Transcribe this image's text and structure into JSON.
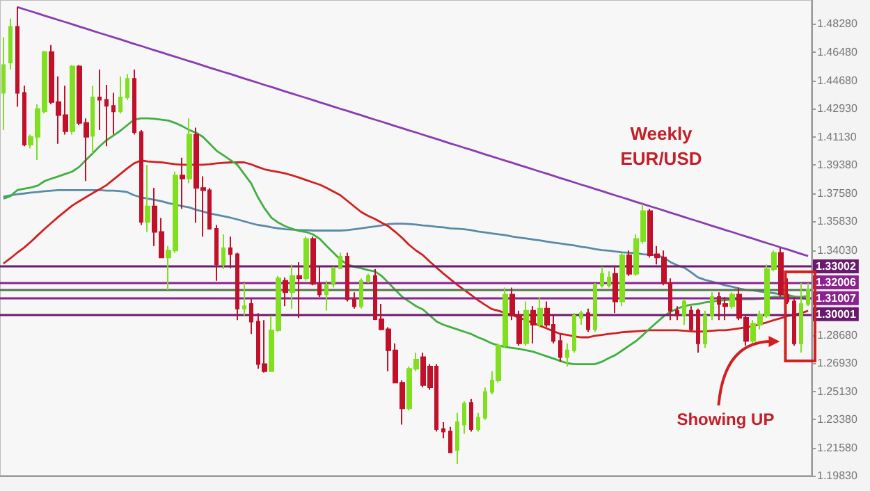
{
  "chart_data": {
    "type": "candlestick",
    "title": "Weekly\nEUR/USD",
    "annotations": [
      "Showing UP"
    ],
    "categories": [
      null,
      null,
      null,
      null,
      null,
      null,
      null,
      null,
      null,
      null,
      null,
      null,
      null,
      null,
      null,
      null,
      null,
      null,
      null,
      null,
      null,
      null,
      null,
      null,
      null,
      null,
      null,
      null,
      null,
      null,
      null,
      null,
      null,
      null,
      null,
      null,
      null,
      null,
      null,
      null,
      null,
      null,
      null,
      null,
      null,
      null,
      null,
      null,
      null,
      null,
      null,
      null,
      null,
      null,
      null,
      null,
      null,
      null,
      null,
      null,
      null,
      null,
      null,
      null,
      null,
      null,
      null,
      null,
      null,
      null,
      null,
      null,
      null,
      null,
      null,
      null,
      null,
      null,
      null,
      null,
      null,
      null,
      null,
      null,
      null,
      null,
      null,
      null,
      null,
      null,
      null,
      null,
      null,
      null,
      null,
      null,
      null,
      null,
      null,
      null,
      null,
      null,
      null,
      null,
      null,
      null,
      null,
      null,
      null,
      null,
      null,
      null,
      null,
      null,
      null,
      null,
      null,
      null
    ],
    "ohlc": [
      [
        1.4393,
        1.4743,
        1.4159,
        1.4568
      ],
      [
        1.4583,
        1.486,
        1.4539,
        1.4808
      ],
      [
        1.4808,
        1.4933,
        1.4305,
        1.4393
      ],
      [
        1.4393,
        1.4437,
        1.4057,
        1.4066
      ],
      [
        1.4066,
        1.413,
        1.4043,
        1.4116
      ],
      [
        1.4116,
        1.432,
        1.397,
        1.4291
      ],
      [
        1.4276,
        1.4656,
        1.4262,
        1.465
      ],
      [
        1.465,
        1.4694,
        1.432,
        1.4335
      ],
      [
        1.4335,
        1.4495,
        1.4072,
        1.4253
      ],
      [
        1.4253,
        1.4437,
        1.413,
        1.4151
      ],
      [
        1.4151,
        1.4568,
        1.413,
        1.4559
      ],
      [
        1.4559,
        1.4568,
        1.4189,
        1.4203
      ],
      [
        1.4203,
        1.4232,
        1.3838,
        1.4116
      ],
      [
        1.4121,
        1.4437,
        1.4013,
        1.4364
      ],
      [
        1.4364,
        1.4539,
        1.4159,
        1.4349
      ],
      [
        1.4349,
        1.4443,
        1.4057,
        1.4311
      ],
      [
        1.4311,
        1.4393,
        1.413,
        1.4276
      ],
      [
        1.4276,
        1.4495,
        1.4262,
        1.4364
      ],
      [
        1.4364,
        1.451,
        1.4349,
        1.4481
      ],
      [
        1.4481,
        1.4539,
        1.413,
        1.4145
      ],
      [
        1.4145,
        1.4159,
        1.3561,
        1.3581
      ],
      [
        1.3581,
        1.394,
        1.3517,
        1.3678
      ],
      [
        1.3678,
        1.3794,
        1.3429,
        1.3517
      ],
      [
        1.3517,
        1.3605,
        1.3356,
        1.3356
      ],
      [
        1.3356,
        1.3429,
        1.3152,
        1.34
      ],
      [
        1.34,
        1.3897,
        1.3386,
        1.3873
      ],
      [
        1.3873,
        1.3984,
        1.3663,
        1.3853
      ],
      [
        1.3853,
        1.4232,
        1.3824,
        1.413
      ],
      [
        1.413,
        1.4174,
        1.3575,
        1.3794
      ],
      [
        1.3794,
        1.3867,
        1.3488,
        1.378
      ],
      [
        1.378,
        1.3794,
        1.3532,
        1.3537
      ],
      [
        1.3537,
        1.3561,
        1.321,
        1.3313
      ],
      [
        1.3313,
        1.3502,
        1.3283,
        1.3415
      ],
      [
        1.3415,
        1.3488,
        1.3289,
        1.3377
      ],
      [
        1.3377,
        1.3386,
        1.2962,
        1.3035
      ],
      [
        1.3035,
        1.3196,
        1.2991,
        1.305
      ],
      [
        1.3064,
        1.3094,
        1.2875,
        1.2953
      ],
      [
        1.2953,
        1.3006,
        1.2656,
        1.2685
      ],
      [
        1.2685,
        1.2962,
        1.2632,
        1.2641
      ],
      [
        1.2641,
        1.2991,
        1.2641,
        1.2898
      ],
      [
        1.2898,
        1.324,
        1.2889,
        1.3225
      ],
      [
        1.321,
        1.3231,
        1.305,
        1.3137
      ],
      [
        1.3137,
        1.3313,
        1.3035,
        1.324
      ],
      [
        1.324,
        1.3327,
        1.2977,
        1.3225
      ],
      [
        1.3225,
        1.3488,
        1.321,
        1.3473
      ],
      [
        1.3473,
        1.3488,
        1.3181,
        1.319
      ],
      [
        1.319,
        1.3298,
        1.3108,
        1.3123
      ],
      [
        1.3123,
        1.321,
        1.3021,
        1.3187
      ],
      [
        1.3187,
        1.3298,
        1.3167,
        1.3289
      ],
      [
        1.3289,
        1.3386,
        1.3283,
        1.3362
      ],
      [
        1.3362,
        1.3386,
        1.3079,
        1.3094
      ],
      [
        1.3094,
        1.3137,
        1.3035,
        1.305
      ],
      [
        1.305,
        1.3225,
        1.3035,
        1.321
      ],
      [
        1.321,
        1.3254,
        1.3196,
        1.324
      ],
      [
        1.324,
        1.3283,
        1.2962,
        1.2968
      ],
      [
        1.2968,
        1.3064,
        1.2898,
        1.2904
      ],
      [
        1.2904,
        1.2918,
        1.2641,
        1.2772
      ],
      [
        1.2772,
        1.2816,
        1.2568,
        1.2568
      ],
      [
        1.2568,
        1.2583,
        1.2305,
        1.2407
      ],
      [
        1.2407,
        1.267,
        1.2393,
        1.2656
      ],
      [
        1.2656,
        1.2758,
        1.2641,
        1.2714
      ],
      [
        1.2729,
        1.2758,
        1.2539,
        1.2553
      ],
      [
        1.267,
        1.2685,
        1.2524,
        1.2539
      ],
      [
        1.267,
        1.2685,
        1.2261,
        1.2276
      ],
      [
        1.2276,
        1.232,
        1.2218,
        1.2261
      ],
      [
        1.2261,
        1.229,
        1.213,
        1.213
      ],
      [
        1.2145,
        1.2378,
        1.2057,
        1.232
      ],
      [
        1.2305,
        1.2451,
        1.2247,
        1.2437
      ],
      [
        1.2442,
        1.2466,
        1.2261,
        1.2276
      ],
      [
        1.2276,
        1.2378,
        1.2261,
        1.2349
      ],
      [
        1.2349,
        1.2539,
        1.2334,
        1.251
      ],
      [
        1.251,
        1.2641,
        1.2495,
        1.2583
      ],
      [
        1.2583,
        1.2816,
        1.2568,
        1.2802
      ],
      [
        1.2802,
        1.3167,
        1.2787,
        1.3123
      ],
      [
        1.3123,
        1.3167,
        1.2962,
        1.2991
      ],
      [
        1.2991,
        1.3021,
        1.2802,
        1.2816
      ],
      [
        1.2816,
        1.3079,
        1.2802,
        1.3021
      ],
      [
        1.3021,
        1.305,
        1.2816,
        1.2933
      ],
      [
        1.2933,
        1.3108,
        1.2918,
        1.3035
      ],
      [
        1.3035,
        1.3079,
        1.2918,
        1.2933
      ],
      [
        1.2933,
        1.2991,
        1.2816,
        1.2831
      ],
      [
        1.2831,
        1.2875,
        1.27,
        1.2729
      ],
      [
        1.2729,
        1.2816,
        1.267,
        1.2772
      ],
      [
        1.2772,
        1.3006,
        1.2758,
        1.2991
      ],
      [
        1.2977,
        1.3021,
        1.2933,
        1.3006
      ],
      [
        1.3006,
        1.3035,
        1.2889,
        1.2904
      ],
      [
        1.2904,
        1.3196,
        1.2889,
        1.3181
      ],
      [
        1.3181,
        1.3298,
        1.3167,
        1.3254
      ],
      [
        1.3181,
        1.3269,
        1.3167,
        1.3231
      ],
      [
        1.3254,
        1.3298,
        1.3006,
        1.3079
      ],
      [
        1.3079,
        1.3386,
        1.305,
        1.3371
      ],
      [
        1.3371,
        1.34,
        1.324,
        1.3254
      ],
      [
        1.3254,
        1.3502,
        1.324,
        1.3473
      ],
      [
        1.3459,
        1.3692,
        1.3444,
        1.3648
      ],
      [
        1.3648,
        1.3663,
        1.3356,
        1.3371
      ],
      [
        1.3377,
        1.3429,
        1.3313,
        1.3356
      ],
      [
        1.3356,
        1.34,
        1.3181,
        1.3196
      ],
      [
        1.3196,
        1.3225,
        1.2962,
        1.3021
      ],
      [
        1.3021,
        1.305,
        1.2962,
        1.2991
      ],
      [
        1.2991,
        1.3094,
        1.2933,
        1.3079
      ],
      [
        1.3021,
        1.305,
        1.2889,
        1.2904
      ],
      [
        1.3021,
        1.3035,
        1.2758,
        1.2816
      ],
      [
        1.2816,
        1.3021,
        1.2787,
        1.2991
      ],
      [
        1.2991,
        1.3137,
        1.2962,
        1.3108
      ],
      [
        1.3108,
        1.3137,
        1.2962,
        1.3064
      ],
      [
        1.3064,
        1.3108,
        1.2962,
        1.305
      ],
      [
        1.305,
        1.3137,
        1.3035,
        1.3123
      ],
      [
        1.3123,
        1.3167,
        1.2962,
        1.2977
      ],
      [
        1.2977,
        1.2991,
        1.2802,
        1.2831
      ],
      [
        1.2831,
        1.2962,
        1.2816,
        1.2939
      ],
      [
        1.2933,
        1.3021,
        1.2904,
        1.2997
      ],
      [
        1.2991,
        1.3313,
        1.2977,
        1.3283
      ],
      [
        1.3283,
        1.34,
        1.3269,
        1.3386
      ],
      [
        1.3386,
        1.3415,
        1.3108,
        1.3123
      ],
      [
        1.3123,
        1.3225,
        1.3064,
        1.3079
      ],
      [
        1.3079,
        1.3108,
        1.2802,
        1.2816
      ],
      [
        1.2816,
        1.3196,
        1.2758,
        1.3064
      ],
      [
        1.3064,
        1.3196,
        1.305,
        1.3152
      ]
    ],
    "colors": [
      "#80e020",
      "#80e020",
      "#c0102a",
      "#c0102a",
      "#80e020",
      "#80e020",
      "#80e020",
      "#c0102a",
      "#c0102a",
      "#c0102a",
      "#80e020",
      "#c0102a",
      "#c0102a",
      "#80e020",
      "#c0102a",
      "#c0102a",
      "#c0102a",
      "#80e020",
      "#80e020",
      "#c0102a",
      "#c0102a",
      "#80e020",
      "#c0102a",
      "#c0102a",
      "#80e020",
      "#80e020",
      "#c0102a",
      "#80e020",
      "#c0102a",
      "#c0102a",
      "#c0102a",
      "#c0102a",
      "#80e020",
      "#c0102a",
      "#c0102a",
      "#80e020",
      "#c0102a",
      "#c0102a",
      "#c0102a",
      "#80e020",
      "#80e020",
      "#c0102a",
      "#80e020",
      "#c0102a",
      "#80e020",
      "#c0102a",
      "#c0102a",
      "#80e020",
      "#80e020",
      "#80e020",
      "#c0102a",
      "#c0102a",
      "#80e020",
      "#80e020",
      "#c0102a",
      "#c0102a",
      "#c0102a",
      "#c0102a",
      "#c0102a",
      "#80e020",
      "#80e020",
      "#c0102a",
      "#c0102a",
      "#c0102a",
      "#c0102a",
      "#c0102a",
      "#80e020",
      "#80e020",
      "#c0102a",
      "#80e020",
      "#80e020",
      "#80e020",
      "#80e020",
      "#80e020",
      "#c0102a",
      "#c0102a",
      "#80e020",
      "#c0102a",
      "#80e020",
      "#c0102a",
      "#c0102a",
      "#c0102a",
      "#80e020",
      "#80e020",
      "#80e020",
      "#c0102a",
      "#80e020",
      "#80e020",
      "#80e020",
      "#c0102a",
      "#80e020",
      "#c0102a",
      "#80e020",
      "#80e020",
      "#c0102a",
      "#c0102a",
      "#c0102a",
      "#c0102a",
      "#c0102a",
      "#80e020",
      "#c0102a",
      "#c0102a",
      "#80e020",
      "#80e020",
      "#c0102a",
      "#c0102a",
      "#80e020",
      "#c0102a",
      "#c0102a",
      "#80e020",
      "#80e020",
      "#80e020",
      "#80e020",
      "#c0102a",
      "#c0102a",
      "#c0102a",
      "#80e020",
      "#80e020"
    ],
    "series": [
      {
        "type": "line",
        "color": "#5a8aa8",
        "values": [
          1.3739,
          1.3748,
          1.3754,
          1.3759,
          1.3765,
          1.3768,
          1.3774,
          1.3777,
          1.378,
          1.378,
          1.378,
          1.378,
          1.378,
          1.378,
          1.378,
          1.3777,
          1.3777,
          1.3774,
          1.3768,
          1.3748,
          1.3736,
          1.3727,
          1.3719,
          1.371,
          1.3698,
          1.3689,
          1.368,
          1.3672,
          1.3657,
          1.3646,
          1.3634,
          1.3625,
          1.3616,
          1.3607,
          1.3596,
          1.3584,
          1.3572,
          1.3561,
          1.3555,
          1.3546,
          1.354,
          1.3534,
          1.3532,
          1.3529,
          1.3529,
          1.3526,
          1.3526,
          1.3526,
          1.3526,
          1.3526,
          1.3529,
          1.3534,
          1.354,
          1.3546,
          1.3552,
          1.3558,
          1.3567,
          1.3569,
          1.3569,
          1.3567,
          1.3564,
          1.3558,
          1.3555,
          1.3549,
          1.3546,
          1.354,
          1.3537,
          1.3534,
          1.3529,
          1.352,
          1.3514,
          1.3508,
          1.3502,
          1.3497,
          1.3488,
          1.3482,
          1.3476,
          1.347,
          1.3464,
          1.3456,
          1.345,
          1.3444,
          1.3438,
          1.3432,
          1.3424,
          1.3418,
          1.3409,
          1.3403,
          1.34,
          1.3394,
          1.3389,
          1.3386,
          1.3383,
          1.3377,
          1.3374,
          1.3371,
          1.3356,
          1.3327,
          1.3307,
          1.3292,
          1.3263,
          1.3231,
          1.3216,
          1.3205,
          1.3193,
          1.3181,
          1.3172,
          1.3161,
          1.3152,
          1.3149,
          1.3143,
          1.3137,
          1.3132,
          1.3126,
          1.312,
          1.3111,
          1.3102,
          1.3094
        ]
      },
      {
        "type": "line",
        "color": "#d02020",
        "values": [
          1.3318,
          1.3351,
          1.3386,
          1.3418,
          1.3456,
          1.3497,
          1.3537,
          1.3575,
          1.3613,
          1.3648,
          1.3683,
          1.371,
          1.3736,
          1.3762,
          1.3786,
          1.3812,
          1.3847,
          1.3882,
          1.3917,
          1.3949,
          1.3967,
          1.3961,
          1.3958,
          1.3955,
          1.3949,
          1.3943,
          1.394,
          1.394,
          1.394,
          1.394,
          1.3943,
          1.3949,
          1.3952,
          1.3955,
          1.3955,
          1.3955,
          1.3943,
          1.3926,
          1.3911,
          1.3902,
          1.3894,
          1.3885,
          1.3873,
          1.3859,
          1.3844,
          1.3829,
          1.3815,
          1.3794,
          1.3771,
          1.3748,
          1.3713,
          1.3678,
          1.3643,
          1.3619,
          1.3599,
          1.3575,
          1.3552,
          1.3517,
          1.3479,
          1.3435,
          1.34,
          1.3371,
          1.333,
          1.3292,
          1.3254,
          1.3219,
          1.3184,
          1.3152,
          1.312,
          1.3088,
          1.3059,
          1.3032,
          1.3021,
          1.3006,
          1.2994,
          1.2977,
          1.2962,
          1.2945,
          1.2927,
          1.291,
          1.2892,
          1.2875,
          1.2869,
          1.286,
          1.2854,
          1.2854,
          1.2863,
          1.2869,
          1.2875,
          1.288,
          1.2886,
          1.2889,
          1.2892,
          1.2895,
          1.2898,
          1.2898,
          1.2898,
          1.2898,
          1.2898,
          1.2895,
          1.2892,
          1.2889,
          1.2892,
          1.2895,
          1.2898,
          1.2898,
          1.2904,
          1.291,
          1.2918,
          1.2924,
          1.2936,
          1.2948,
          1.2962,
          1.2974,
          1.2988,
          1.2997,
          1.3006,
          1.3021
        ]
      },
      {
        "type": "line",
        "color": "#40b040",
        "values": [
          1.3727,
          1.3742,
          1.378,
          1.3789,
          1.3797,
          1.3809,
          1.3838,
          1.3853,
          1.3867,
          1.3882,
          1.3897,
          1.3926,
          1.397,
          1.4013,
          1.4057,
          1.4095,
          1.4124,
          1.4154,
          1.4189,
          1.4224,
          1.4232,
          1.4232,
          1.4229,
          1.4224,
          1.4218,
          1.4203,
          1.4183,
          1.4159,
          1.4142,
          1.4116,
          1.4072,
          1.4028,
          1.3999,
          1.397,
          1.394,
          1.3882,
          1.3824,
          1.3736,
          1.3663,
          1.3605,
          1.3575,
          1.3552,
          1.3537,
          1.3523,
          1.3517,
          1.3502,
          1.3473,
          1.3429,
          1.3386,
          1.3342,
          1.3313,
          1.3298,
          1.3289,
          1.3277,
          1.3269,
          1.324,
          1.3196,
          1.3152,
          1.3108,
          1.3079,
          1.305,
          1.3029,
          1.2991,
          1.2953,
          1.2933,
          1.2918,
          1.2904,
          1.2889,
          1.2875,
          1.2854,
          1.2837,
          1.2816,
          1.2802,
          1.2793,
          1.2787,
          1.2781,
          1.2772,
          1.2764,
          1.2749,
          1.2734,
          1.272,
          1.2705,
          1.2691,
          1.2685,
          1.2685,
          1.2685,
          1.2685,
          1.27,
          1.2723,
          1.2743,
          1.2772,
          1.2802,
          1.2831,
          1.2869,
          1.291,
          1.2948,
          1.2986,
          1.3015,
          1.3035,
          1.305,
          1.3059,
          1.3064,
          1.3073,
          1.3079,
          1.3085,
          1.3088,
          1.3091,
          1.3094,
          1.3094,
          1.3094,
          1.3097,
          1.3102,
          1.3108,
          1.3108,
          1.3108,
          1.3108,
          1.3108,
          1.3114
        ]
      },
      {
        "type": "line",
        "color": "#8a3cb0",
        "values": [
          null,
          null,
          1.4933,
          1.4919,
          1.4906,
          1.4892,
          1.4878,
          1.4865,
          1.4851,
          1.4838,
          1.4824,
          1.481,
          1.4797,
          1.4783,
          1.4769,
          1.4756,
          1.4742,
          1.4729,
          1.4715,
          1.4701,
          1.4688,
          1.4674,
          1.466,
          1.4647,
          1.4633,
          1.462,
          1.4606,
          1.4592,
          1.4579,
          1.4565,
          1.4551,
          1.4538,
          1.4524,
          1.4511,
          1.4497,
          1.4483,
          1.447,
          1.4456,
          1.4442,
          1.4429,
          1.4415,
          1.4401,
          1.4388,
          1.4374,
          1.4361,
          1.4347,
          1.4333,
          1.432,
          1.4306,
          1.4292,
          1.4279,
          1.4265,
          1.4252,
          1.4238,
          1.4224,
          1.4211,
          1.4197,
          1.4183,
          1.417,
          1.4156,
          1.4143,
          1.4129,
          1.4115,
          1.4102,
          1.4088,
          1.4074,
          1.4061,
          1.4047,
          1.4034,
          1.402,
          1.4006,
          1.3993,
          1.3979,
          1.3965,
          1.3952,
          1.3938,
          1.3925,
          1.3911,
          1.3897,
          1.3884,
          1.387,
          1.3856,
          1.3843,
          1.3829,
          1.3815,
          1.3802,
          1.3788,
          1.3775,
          1.3761,
          1.3747,
          1.3734,
          1.372,
          1.3706,
          1.3693,
          1.3679,
          1.3666,
          1.3652,
          1.3638,
          1.3625,
          1.3611,
          1.3597,
          1.3584,
          1.357,
          1.3556,
          1.3543,
          1.3529,
          1.3516,
          1.3502,
          1.3488,
          1.3475,
          1.3461,
          1.3447,
          1.3434,
          1.342,
          1.3407,
          1.3393,
          1.3379,
          1.3366
        ]
      }
    ],
    "ylim": [
      1.1983,
      1.4977
    ],
    "yticks": [
      {
        "value": 1.4828,
        "label": "1.48280"
      },
      {
        "value": 1.4648,
        "label": "1.46480"
      },
      {
        "value": 1.4468,
        "label": "1.44680"
      },
      {
        "value": 1.4293,
        "label": "1.42930"
      },
      {
        "value": 1.4113,
        "label": "1.41130"
      },
      {
        "value": 1.3938,
        "label": "1.39380"
      },
      {
        "value": 1.3758,
        "label": "1.37580"
      },
      {
        "value": 1.3583,
        "label": "1.35830"
      },
      {
        "value": 1.3403,
        "label": "1.34030"
      },
      {
        "value": 1.2868,
        "label": "1.28680"
      },
      {
        "value": 1.2693,
        "label": "1.26930"
      },
      {
        "value": 1.2513,
        "label": "1.25130"
      },
      {
        "value": 1.2338,
        "label": "1.23380"
      },
      {
        "value": 1.2158,
        "label": "1.21580"
      },
      {
        "value": 1.1983,
        "label": "1.19830"
      }
    ],
    "ref_lines": [
      {
        "axis": "y",
        "value": 1.33002,
        "label": "1.33002",
        "color": "#6a1a6e"
      },
      {
        "axis": "y",
        "value": 1.32006,
        "label": "1.32006",
        "color": "#8c2190"
      },
      {
        "axis": "y",
        "value": 1.315,
        "label": null,
        "color": "#5a7050"
      },
      {
        "axis": "y",
        "value": 1.31007,
        "label": "1.31007",
        "color": "#8c2190"
      },
      {
        "axis": "y",
        "value": 1.30001,
        "label": "1.30001",
        "color": "#6a1a6e"
      }
    ],
    "tick_labels": "y",
    "grid": false
  }
}
